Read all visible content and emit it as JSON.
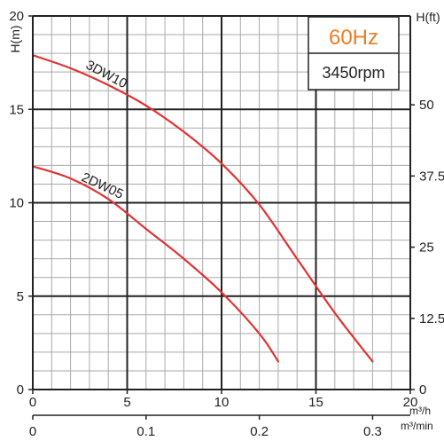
{
  "chart_data": {
    "type": "line",
    "title": "",
    "badge": {
      "frequency": "60Hz",
      "speed": "3450rpm"
    },
    "xlabel": "m³/h",
    "xlabel_secondary": "m³/min",
    "ylabel": "H(m)",
    "ylabel_right": "H(ft)",
    "xlim": [
      0,
      20
    ],
    "ylim": [
      0,
      20
    ],
    "x2lim": [
      0,
      0.3333
    ],
    "y2lim": [
      0,
      65.6
    ],
    "x_ticks": [
      "0",
      "5",
      "10",
      "15",
      "20"
    ],
    "x2_ticks": [
      "0",
      "0.1",
      "0.2",
      "0.3"
    ],
    "y_ticks": [
      "0",
      "5",
      "10",
      "15",
      "20"
    ],
    "y2_ticks": [
      "0",
      "12.5",
      "25",
      "37.5",
      "50"
    ],
    "grid": true,
    "series": [
      {
        "name": "3DW10",
        "color": "#e03333",
        "x": [
          0,
          2,
          4,
          6,
          8,
          10,
          12,
          14,
          16,
          18
        ],
        "y": [
          17.9,
          17.2,
          16.3,
          15.2,
          13.8,
          12.1,
          9.9,
          7.0,
          4.1,
          1.5
        ]
      },
      {
        "name": "2DW05",
        "color": "#e03333",
        "x": [
          0,
          2,
          4,
          6,
          8,
          10,
          12,
          13
        ],
        "y": [
          11.95,
          11.3,
          10.2,
          8.6,
          7.0,
          5.2,
          3.0,
          1.5
        ]
      }
    ]
  }
}
